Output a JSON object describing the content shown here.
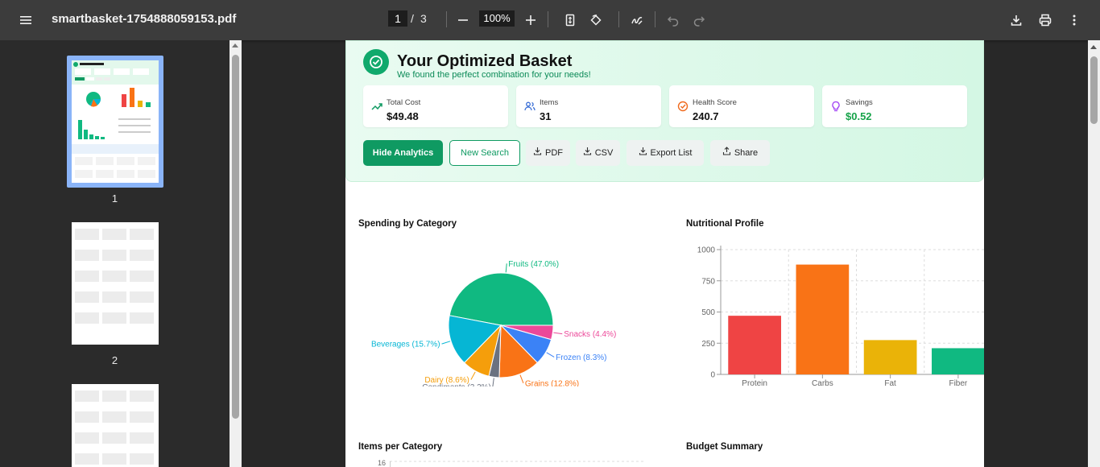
{
  "toolbar": {
    "filename": "smartbasket-1754888059153.pdf",
    "current_page": "1",
    "page_separator": "/",
    "total_pages": "3",
    "zoom": "100%"
  },
  "thumbnails": [
    {
      "label": "1"
    },
    {
      "label": "2"
    }
  ],
  "basket": {
    "title": "Your Optimized Basket",
    "subtitle": "We found the perfect combination for your needs!",
    "stats": [
      {
        "label": "Total Cost",
        "value": "$49.48",
        "icon": "trend-up-icon",
        "color": "#0f9a62"
      },
      {
        "label": "Items",
        "value": "31",
        "icon": "users-icon",
        "color": "#3b6fd6"
      },
      {
        "label": "Health Score",
        "value": "240.7",
        "icon": "check-circle-icon",
        "color": "#f06a1d"
      },
      {
        "label": "Savings",
        "value": "$0.52",
        "icon": "lightbulb-icon",
        "color": "#a142f4",
        "value_color": "#17a34a"
      }
    ],
    "buttons": {
      "hide_analytics": "Hide Analytics",
      "new_search": "New Search",
      "pdf": "PDF",
      "csv": "CSV",
      "export_list": "Export List",
      "share": "Share"
    }
  },
  "sections": {
    "spending": "Spending by Category",
    "nutrition": "Nutritional Profile",
    "items_per_category": "Items per Category",
    "budget_summary": "Budget Summary"
  },
  "items_axis_first_tick": "16",
  "chart_data": [
    {
      "type": "pie",
      "title": "Spending by Category",
      "slices": [
        {
          "label": "Fruits (47.0%)",
          "value": 47.0,
          "color": "#10b981"
        },
        {
          "label": "Snacks (4.4%)",
          "value": 4.4,
          "color": "#ec4899"
        },
        {
          "label": "Frozen (8.3%)",
          "value": 8.3,
          "color": "#3b82f6"
        },
        {
          "label": "Grains (12.8%)",
          "value": 12.8,
          "color": "#f97316"
        },
        {
          "label": "Condiments (3.2%)",
          "value": 3.2,
          "color": "#6b7280"
        },
        {
          "label": "Dairy (8.6%)",
          "value": 8.6,
          "color": "#f59e0b"
        },
        {
          "label": "Beverages (15.7%)",
          "value": 15.7,
          "color": "#06b6d4"
        }
      ]
    },
    {
      "type": "bar",
      "title": "Nutritional Profile",
      "categories": [
        "Protein",
        "Carbs",
        "Fat",
        "Fiber"
      ],
      "values": [
        470,
        880,
        275,
        210
      ],
      "colors": [
        "#ef4444",
        "#f97316",
        "#eab308",
        "#10b981"
      ],
      "ylim": [
        0,
        1000
      ],
      "yticks": [
        "0",
        "250",
        "500",
        "750",
        "1000"
      ],
      "grid": true
    }
  ]
}
